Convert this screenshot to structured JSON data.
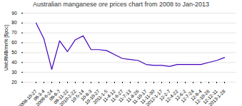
{
  "chart_data": {
    "type": "line",
    "title": "Australian manganese ore prices chart from 2008 to Jan-2013",
    "ylabel": "Unit:RMB/mn% [$poc]",
    "categories": [
      "2008-10-27",
      "09-3-4",
      "2009-6-24",
      "09-9-7",
      "09-11-22",
      "2010-2-22",
      "10-5-14",
      "10-8-3",
      "10-10-27",
      "2011-1-5",
      "11-4-12",
      "11-6-27",
      "11-7-13",
      "11-8-26",
      "11-10-17",
      "11-11-30",
      "2012-1-17",
      "12-2-7",
      "12-4-22",
      "12-6-2",
      "12-7-24",
      "12-9-4",
      "12-10-26",
      "12-12-11",
      "2013-1-28"
    ],
    "values": [
      80,
      64,
      33,
      62,
      51,
      63,
      67,
      53,
      53,
      52,
      48,
      44,
      43,
      42,
      38,
      37,
      37,
      36,
      38,
      38,
      38,
      38,
      40,
      42,
      45
    ],
    "color": "#4400bb",
    "ylim": [
      20,
      90
    ],
    "yticks": [
      20,
      30,
      40,
      50,
      60,
      70,
      80,
      90
    ],
    "grid": true
  }
}
